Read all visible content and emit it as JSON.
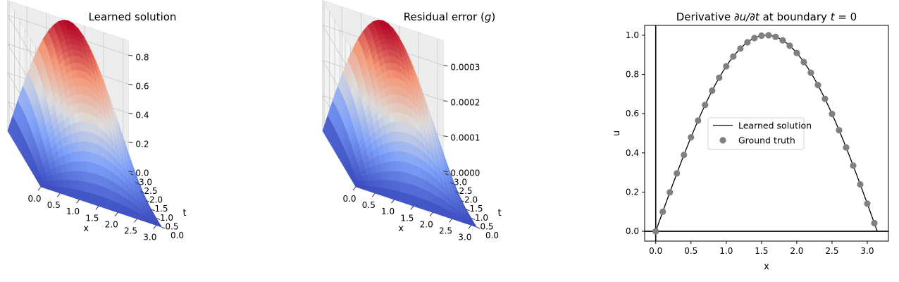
{
  "chart_data": [
    {
      "type": "surface3d",
      "title": "Learned solution",
      "xlabel": "x",
      "ylabel": "t",
      "zlabel": "",
      "function": "z = zmax * sin(x) * sin(t/2)",
      "zmax": 0.9,
      "x_ticks": [
        "0.0",
        "0.5",
        "1.0",
        "1.5",
        "2.0",
        "2.5",
        "3.0"
      ],
      "y_ticks": [
        "0.0",
        "0.5",
        "1.0",
        "1.5",
        "2.0",
        "2.5",
        "3.0"
      ],
      "z_ticks": [
        "0.0",
        "0.2",
        "0.4",
        "0.6",
        "0.8"
      ],
      "z_tick_values": [
        0.0,
        0.2,
        0.4,
        0.6,
        0.8
      ],
      "colormap": "coolwarm"
    },
    {
      "type": "surface3d",
      "title_prefix": "Residual error (",
      "title_var": "g",
      "title_suffix": ")",
      "xlabel": "x",
      "ylabel": "t",
      "zlabel": "",
      "function": "z = zmax * sin(x) * sin(t/2)",
      "zmax": 0.00037,
      "x_ticks": [
        "0.0",
        "0.5",
        "1.0",
        "1.5",
        "2.0",
        "2.5",
        "3.0"
      ],
      "y_ticks": [
        "0.0",
        "0.5",
        "1.0",
        "1.5",
        "2.0",
        "2.5",
        "3.0"
      ],
      "z_ticks": [
        "0.0000",
        "0.0001",
        "0.0002",
        "0.0003"
      ],
      "z_tick_values": [
        0.0,
        0.0001,
        0.0002,
        0.0003
      ],
      "colormap": "coolwarm"
    },
    {
      "type": "line",
      "title_prefix": "Derivative ",
      "title_expr": "∂u/∂t",
      "title_mid": " at boundary ",
      "title_var": "t",
      "title_suffix": " = 0",
      "xlabel": "x",
      "ylabel": "u",
      "xlim": [
        -0.157,
        3.3
      ],
      "ylim": [
        -0.05,
        1.05
      ],
      "x_ticks": [
        0.0,
        0.5,
        1.0,
        1.5,
        2.0,
        2.5,
        3.0
      ],
      "x_tick_labels": [
        "0.0",
        "0.5",
        "1.0",
        "1.5",
        "2.0",
        "2.5",
        "3.0"
      ],
      "y_ticks": [
        0.0,
        0.2,
        0.4,
        0.6,
        0.8,
        1.0
      ],
      "y_tick_labels": [
        "0.0",
        "0.2",
        "0.4",
        "0.6",
        "0.8",
        "1.0"
      ],
      "legend_placement": "center",
      "series": [
        {
          "name": "Learned solution",
          "kind": "line",
          "color": "#000000",
          "function": "sin(x)",
          "x_range": [
            0,
            3.1416
          ]
        },
        {
          "name": "Ground truth",
          "kind": "scatter",
          "color": "#808080",
          "x": [
            0.0,
            0.1,
            0.2,
            0.3,
            0.4,
            0.5,
            0.6,
            0.7,
            0.8,
            0.9,
            1.0,
            1.1,
            1.2,
            1.3,
            1.4,
            1.5,
            1.6,
            1.7,
            1.8,
            1.9,
            2.0,
            2.1,
            2.2,
            2.3,
            2.4,
            2.5,
            2.6,
            2.7,
            2.8,
            2.9,
            3.0,
            3.1
          ],
          "y": [
            0.0,
            0.0998,
            0.1987,
            0.2955,
            0.3894,
            0.4794,
            0.5646,
            0.6442,
            0.7174,
            0.7833,
            0.8415,
            0.8912,
            0.932,
            0.9636,
            0.9854,
            0.9975,
            0.9996,
            0.9917,
            0.9738,
            0.9463,
            0.9093,
            0.8632,
            0.8085,
            0.7457,
            0.6755,
            0.5985,
            0.5155,
            0.4274,
            0.335,
            0.2392,
            0.1411,
            0.0416
          ]
        }
      ]
    }
  ]
}
